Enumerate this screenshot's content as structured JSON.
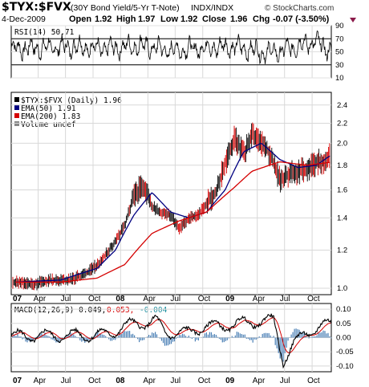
{
  "header": {
    "symbol": "$TYX:$FVX",
    "description": "(30Y Bond Yield/5-Yr T-Note)",
    "exchange": "INDX/INDX",
    "date": "4-Dec-2009",
    "open_label": "Open",
    "open_value": "1.92",
    "high_label": "High",
    "high_value": "1.97",
    "low_label": "Low",
    "low_value": "1.92",
    "close_label": "Close",
    "close_value": "1.96",
    "chg_label": "Chg",
    "chg_value": "-0.07 (-3.50%)",
    "down_marker_color": "#8b1a4a",
    "credit": "© StockCharts.com"
  },
  "rsi_panel": {
    "label": "RSI(14) 50.71",
    "ticks": [
      "90",
      "70",
      "50",
      "30",
      "10"
    ]
  },
  "price_panel": {
    "legend": [
      {
        "text": "$TYX:$FVX (Daily) 1.96",
        "swatch": "#000000"
      },
      {
        "text": "EMA(50) 1.91",
        "swatch": "#000080"
      },
      {
        "text": "EMA(200) 1.83",
        "swatch": "#d40000"
      },
      {
        "text": "Volume undef",
        "swatch": "#888888"
      }
    ],
    "ticks": [
      "2.4",
      "2.2",
      "2.0",
      "1.8",
      "1.6",
      "1.4",
      "1.2",
      "1.0"
    ]
  },
  "macd_panel": {
    "label_main": "MACD(12,26,9) 0.049,",
    "label_signal": "0.053,",
    "label_hist": "-0.004",
    "ticks": [
      "0.10",
      "0.05",
      "0.00",
      "-0.05",
      "-0.10"
    ]
  },
  "x_axis": {
    "labels": [
      "07",
      "Apr",
      "Jul",
      "Oct",
      "08",
      "Apr",
      "Jul",
      "Oct",
      "09",
      "Apr",
      "Jul",
      "Oct"
    ]
  },
  "chart_data": [
    {
      "type": "line",
      "title": "RSI(14) 50.71",
      "x_range": [
        "2007-01",
        "2009-12"
      ],
      "ylim": [
        10,
        90
      ],
      "reference_lines": [
        70,
        30
      ],
      "anchors": {
        "x": [
          0,
          0.1,
          0.2,
          0.3,
          0.4,
          0.5,
          0.6,
          0.7,
          0.8,
          0.85,
          0.9,
          0.95,
          1.0
        ],
        "y": [
          55,
          56,
          58,
          55,
          60,
          52,
          56,
          58,
          48,
          52,
          60,
          66,
          51
        ]
      }
    },
    {
      "type": "line",
      "title": "$TYX:$FVX (Daily) 1.96",
      "x_range": [
        "2007-01",
        "2009-12"
      ],
      "ylim": [
        0.97,
        2.55
      ],
      "log_scale": true,
      "series": [
        {
          "name": "$TYX:$FVX (Daily) 1.96",
          "dates": [
            "2007-01",
            "2007-03",
            "2007-05",
            "2007-07",
            "2007-09",
            "2007-10",
            "2007-11",
            "2007-12",
            "2008-01",
            "2008-02",
            "2008-03",
            "2008-04",
            "2008-05",
            "2008-06",
            "2008-07",
            "2008-08",
            "2008-09",
            "2008-10",
            "2008-11",
            "2008-12",
            "2009-01",
            "2009-02",
            "2009-03",
            "2009-04",
            "2009-05",
            "2009-06",
            "2009-07",
            "2009-08",
            "2009-09",
            "2009-10",
            "2009-11",
            "2009-12"
          ],
          "values": [
            1.03,
            1.02,
            1.04,
            1.04,
            1.08,
            1.12,
            1.18,
            1.25,
            1.35,
            1.55,
            1.65,
            1.48,
            1.44,
            1.42,
            1.33,
            1.4,
            1.42,
            1.5,
            1.58,
            1.82,
            2.05,
            1.9,
            2.08,
            2.0,
            1.9,
            1.68,
            1.72,
            1.75,
            1.78,
            1.82,
            1.85,
            1.96
          ]
        },
        {
          "name": "EMA(50) 1.91",
          "dates": [
            "2007-01",
            "2007-06",
            "2007-10",
            "2007-12",
            "2008-02",
            "2008-04",
            "2008-06",
            "2008-08",
            "2008-10",
            "2008-12",
            "2009-02",
            "2009-04",
            "2009-06",
            "2009-08",
            "2009-10",
            "2009-12"
          ],
          "values": [
            1.03,
            1.04,
            1.1,
            1.2,
            1.42,
            1.58,
            1.44,
            1.4,
            1.44,
            1.6,
            1.92,
            2.0,
            1.85,
            1.78,
            1.8,
            1.91
          ]
        },
        {
          "name": "EMA(200) 1.83",
          "dates": [
            "2007-01",
            "2007-06",
            "2007-10",
            "2008-01",
            "2008-04",
            "2008-07",
            "2008-10",
            "2009-01",
            "2009-03",
            "2009-06",
            "2009-09",
            "2009-12"
          ],
          "values": [
            1.03,
            1.03,
            1.05,
            1.12,
            1.3,
            1.38,
            1.44,
            1.62,
            1.75,
            1.83,
            1.8,
            1.83
          ]
        }
      ]
    },
    {
      "type": "line",
      "title": "MACD(12,26,9) 0.049, 0.053, -0.004",
      "x_range": [
        "2007-01",
        "2009-12"
      ],
      "ylim": [
        -0.12,
        0.12
      ],
      "anchors": {
        "x": [
          0,
          0.3,
          0.35,
          0.45,
          0.48,
          0.55,
          0.6,
          0.65,
          0.75,
          0.82,
          0.85,
          0.88,
          0.92,
          0.95,
          1.0
        ],
        "y": [
          0.005,
          0.01,
          0.04,
          0.06,
          0.02,
          0.015,
          0.04,
          0.04,
          0.055,
          0.06,
          -0.08,
          -0.03,
          0.02,
          0.03,
          0.049
        ]
      }
    }
  ]
}
